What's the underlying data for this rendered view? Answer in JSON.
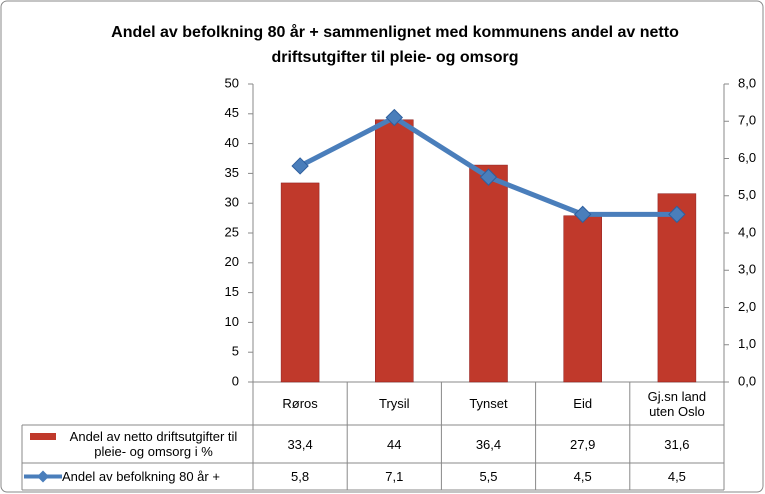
{
  "chart_data": {
    "type": "bar-line",
    "title": "Andel av befolkning 80 år + sammenlignet med kommunens andel av netto driftsutgifter til pleie- og omsorg",
    "categories": [
      "Røros",
      "Trysil",
      "Tynset",
      "Eid",
      "Gj.sn land uten Oslo"
    ],
    "series": [
      {
        "name": "Andel av netto driftsutgifter til pleie- og omsorg i %",
        "color": "#c0392b",
        "type": "bar",
        "axis": "y",
        "values": [
          33.4,
          44,
          36.4,
          27.9,
          31.6
        ],
        "value_labels": [
          "33,4",
          "44",
          "36,4",
          "27,9",
          "31,6"
        ]
      },
      {
        "name": "Andel av befolkning 80 år +",
        "color": "#4a7ebb",
        "type": "line",
        "axis": "y2",
        "values": [
          5.8,
          7.1,
          5.5,
          4.5,
          4.5
        ],
        "value_labels": [
          "5,8",
          "7,1",
          "5,5",
          "4,5",
          "4,5"
        ]
      }
    ],
    "ylim": [
      0,
      50
    ],
    "yticks": [
      0,
      5,
      10,
      15,
      20,
      25,
      30,
      35,
      40,
      45,
      50
    ],
    "y2lim": [
      0,
      8
    ],
    "y2ticks": [
      {
        "value": 0,
        "label": "0,0"
      },
      {
        "value": 1,
        "label": "1,0"
      },
      {
        "value": 2,
        "label": "2,0"
      },
      {
        "value": 3,
        "label": "3,0"
      },
      {
        "value": 4,
        "label": "4,0"
      },
      {
        "value": 5,
        "label": "5,0"
      },
      {
        "value": 6,
        "label": "6,0"
      },
      {
        "value": 7,
        "label": "7,0"
      },
      {
        "value": 8,
        "label": "8,0"
      }
    ],
    "grid": false
  }
}
